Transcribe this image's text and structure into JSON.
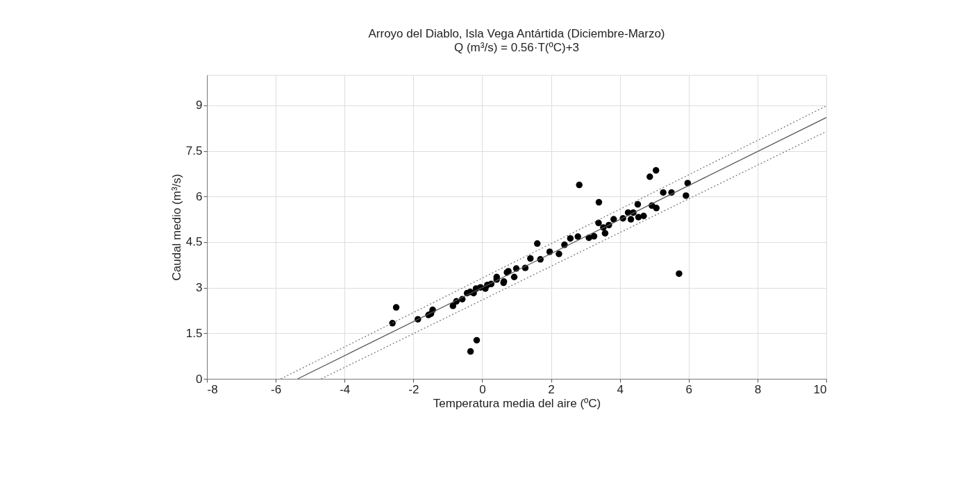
{
  "chart_data": {
    "type": "scatter",
    "title": "Arroyo del Diablo, Isla Vega Antártida (Diciembre-Marzo)",
    "subtitle": "Q (m³/s) = 0.56·T(ºC)+3",
    "xlabel": "Temperatura media del aire (ºC)",
    "ylabel": "Caudal medio (m³/s)",
    "xlim": [
      -8,
      10
    ],
    "xticks": [
      -8,
      -6,
      -4,
      -2,
      0,
      2,
      4,
      6,
      8,
      10
    ],
    "ylim": [
      0,
      10
    ],
    "yticks": [
      0,
      1.5,
      3,
      4.5,
      6,
      7.5,
      9
    ],
    "grid": true,
    "series": [
      {
        "color": "#000000",
        "marker": "circle",
        "x": [
          -2.61,
          -2.5,
          -1.87,
          -1.56,
          -1.49,
          -1.44,
          -0.85,
          -0.75,
          -0.58,
          -0.44,
          -0.35,
          -0.25,
          -0.18,
          -0.34,
          -0.16,
          -0.05,
          0.09,
          0.15,
          0.26,
          0.42,
          0.62,
          0.72,
          0.42,
          0.63,
          0.76,
          0.93,
          0.99,
          1.25,
          1.4,
          1.6,
          1.69,
          1.96,
          2.23,
          2.39,
          2.56,
          2.78,
          2.82,
          3.1,
          3.25,
          3.39,
          3.38,
          3.52,
          3.57,
          3.68,
          3.82,
          4.09,
          4.24,
          4.32,
          4.39,
          4.52,
          4.54,
          4.69,
          4.87,
          4.93,
          5.05,
          5.06,
          5.26,
          5.5,
          5.72,
          5.97,
          5.92
        ],
        "values": [
          1.83,
          2.35,
          1.96,
          2.1,
          2.14,
          2.27,
          2.4,
          2.55,
          2.62,
          2.82,
          2.86,
          2.82,
          2.97,
          0.9,
          1.27,
          3.01,
          2.97,
          3.09,
          3.12,
          3.35,
          3.16,
          3.5,
          3.27,
          3.2,
          3.54,
          3.35,
          3.63,
          3.65,
          3.96,
          4.45,
          3.93,
          4.18,
          4.11,
          4.41,
          4.62,
          4.68,
          6.38,
          4.64,
          4.69,
          5.81,
          5.13,
          4.98,
          4.79,
          5.06,
          5.25,
          5.28,
          5.47,
          5.25,
          5.47,
          5.74,
          5.32,
          5.36,
          6.65,
          5.7,
          6.86,
          5.62,
          6.13,
          6.13,
          3.46,
          6.44,
          6.03
        ]
      },
      {
        "type": "line",
        "color": "#555555",
        "line_style": "solid",
        "x": [
          -5.36,
          10
        ],
        "values": [
          0,
          8.6
        ]
      },
      {
        "type": "line",
        "color": "#777777",
        "line_style": "dotted",
        "x": [
          -5.85,
          10
        ],
        "values": [
          0,
          8.98
        ]
      },
      {
        "type": "line",
        "color": "#777777",
        "line_style": "dotted",
        "x": [
          -4.68,
          10
        ],
        "values": [
          0,
          8.14
        ]
      }
    ]
  }
}
